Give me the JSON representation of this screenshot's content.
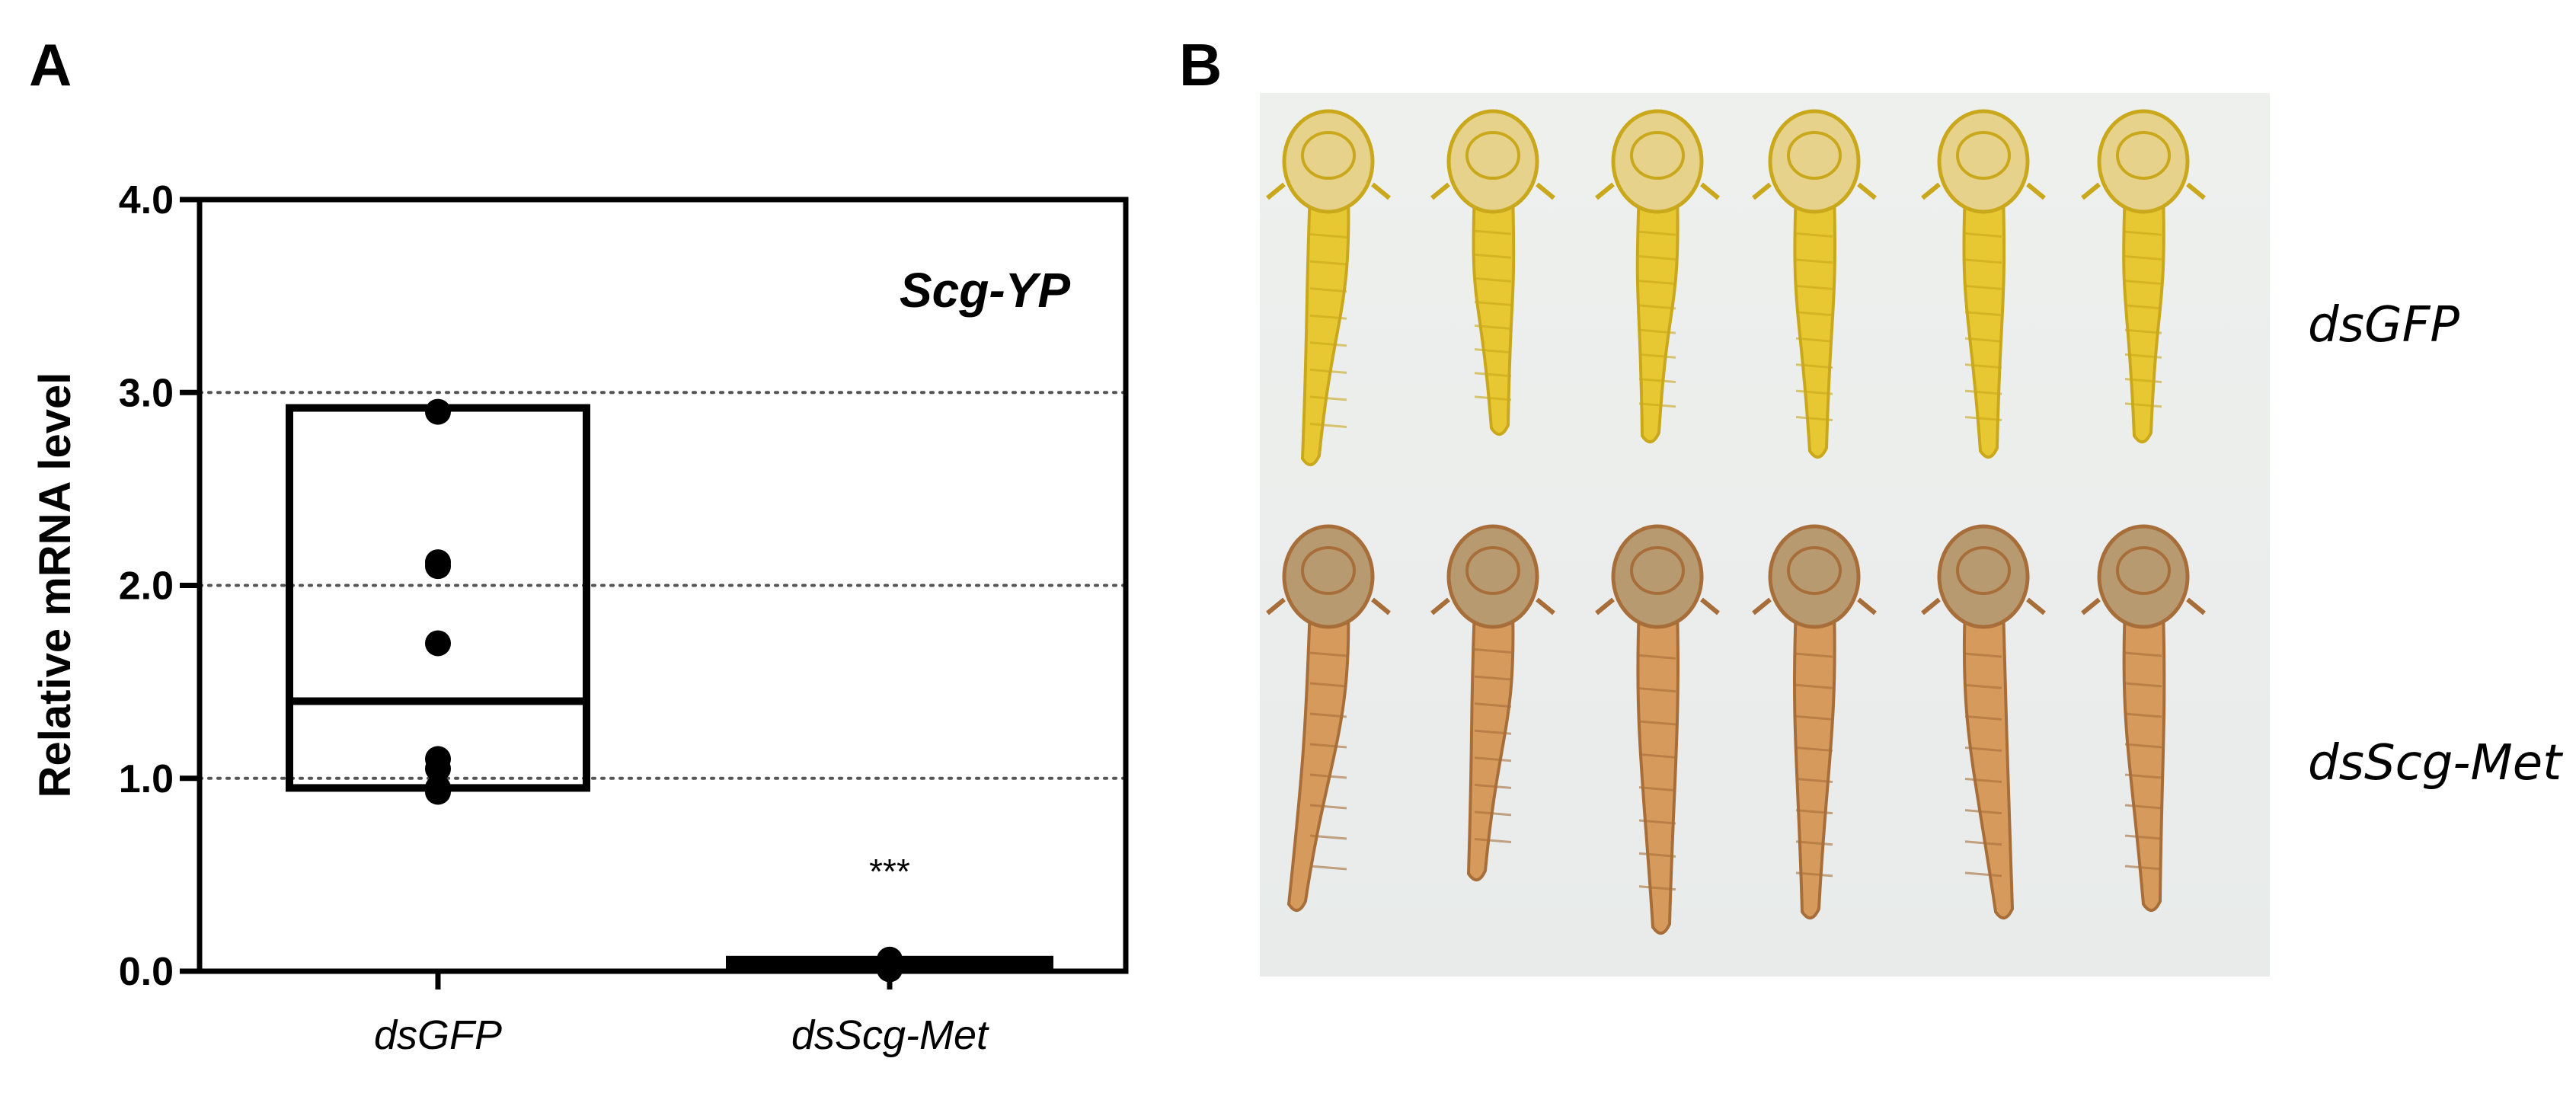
{
  "panels": {
    "a_label": "A",
    "b_label": "B"
  },
  "chart_data": {
    "type": "box",
    "gene_label": "Scg-YP",
    "ylabel": "Relative mRNA level",
    "xlabel": "",
    "ylim": [
      0,
      4
    ],
    "yticks": [
      0,
      1,
      2,
      3,
      4
    ],
    "ytick_labels": [
      "0.0",
      "1.0",
      "2.0",
      "3.0",
      "4.0"
    ],
    "gridlines": [
      1,
      2,
      3
    ],
    "grid": "dotted horizontal",
    "categories": [
      "dsGFP",
      "dsScg-Met"
    ],
    "boxes": [
      {
        "category": "dsGFP",
        "min": 0.95,
        "median": 1.4,
        "max": 2.92,
        "points": [
          2.9,
          2.12,
          2.1,
          1.7,
          1.1,
          1.05,
          0.95,
          0.93
        ]
      },
      {
        "category": "dsScg-Met",
        "min": 0.02,
        "median": 0.04,
        "max": 0.06,
        "points": [
          0.06,
          0.05,
          0.04,
          0.03,
          0.02,
          0.01
        ]
      }
    ],
    "significance": [
      {
        "category": "dsScg-Met",
        "label": "***"
      }
    ]
  },
  "photo": {
    "row_labels": [
      "dsGFP",
      "dsScg-Met"
    ],
    "top_row": {
      "count": 6,
      "body_color": "#e8c832",
      "head_color": "#e6d28a",
      "shade_color": "#c9a81c"
    },
    "bottom_row": {
      "count": 6,
      "body_color": "#d69a5c",
      "head_color": "#b89a70",
      "shade_color": "#a86e3a"
    }
  }
}
